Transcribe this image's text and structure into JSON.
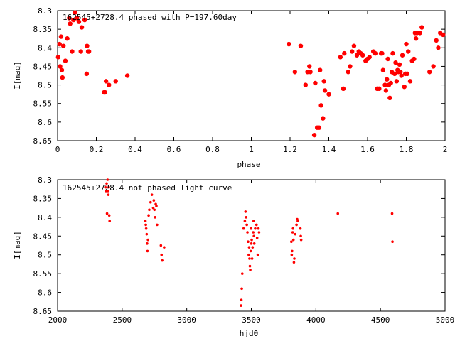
{
  "chart_data": [
    {
      "type": "scatter",
      "title": "162545+2728.4 phased with P=197.60day",
      "xlabel": "phase",
      "ylabel": "I[mag]",
      "xlim": [
        0,
        2
      ],
      "ylim": [
        8.65,
        8.3
      ],
      "y_inverted": true,
      "xticks": [
        "0",
        "0.2",
        "0.4",
        "0.6",
        "0.8",
        "1",
        "1.2",
        "1.4",
        "1.6",
        "1.8",
        "2"
      ],
      "yticks": [
        "8.3",
        "8.35",
        "8.4",
        "8.45",
        "8.5",
        "8.55",
        "8.6",
        "8.65"
      ],
      "grid": false,
      "marker": "filled-circle",
      "color": "#ff0000",
      "points": [
        [
          0.003,
          8.425
        ],
        [
          0.01,
          8.39
        ],
        [
          0.013,
          8.45
        ],
        [
          0.018,
          8.37
        ],
        [
          0.022,
          8.46
        ],
        [
          0.025,
          8.48
        ],
        [
          0.03,
          8.395
        ],
        [
          0.04,
          8.435
        ],
        [
          0.05,
          8.375
        ],
        [
          0.06,
          8.32
        ],
        [
          0.065,
          8.335
        ],
        [
          0.075,
          8.41
        ],
        [
          0.082,
          8.325
        ],
        [
          0.09,
          8.305
        ],
        [
          0.1,
          8.32
        ],
        [
          0.11,
          8.33
        ],
        [
          0.12,
          8.41
        ],
        [
          0.125,
          8.345
        ],
        [
          0.14,
          8.325
        ],
        [
          0.15,
          8.47
        ],
        [
          0.152,
          8.395
        ],
        [
          0.158,
          8.41
        ],
        [
          0.162,
          8.41
        ],
        [
          0.24,
          8.52
        ],
        [
          0.245,
          8.52
        ],
        [
          0.25,
          8.49
        ],
        [
          0.265,
          8.5
        ],
        [
          0.3,
          8.49
        ],
        [
          0.36,
          8.475
        ],
        [
          1.194,
          8.39
        ],
        [
          1.225,
          8.465
        ],
        [
          1.255,
          8.395
        ],
        [
          1.28,
          8.5
        ],
        [
          1.29,
          8.465
        ],
        [
          1.3,
          8.45
        ],
        [
          1.305,
          8.465
        ],
        [
          1.325,
          8.635
        ],
        [
          1.33,
          8.495
        ],
        [
          1.34,
          8.615
        ],
        [
          1.35,
          8.615
        ],
        [
          1.355,
          8.46
        ],
        [
          1.36,
          8.555
        ],
        [
          1.37,
          8.59
        ],
        [
          1.375,
          8.49
        ],
        [
          1.38,
          8.515
        ],
        [
          1.4,
          8.525
        ],
        [
          1.46,
          8.425
        ],
        [
          1.475,
          8.51
        ],
        [
          1.48,
          8.415
        ],
        [
          1.5,
          8.465
        ],
        [
          1.51,
          8.45
        ],
        [
          1.52,
          8.41
        ],
        [
          1.53,
          8.395
        ],
        [
          1.545,
          8.42
        ],
        [
          1.555,
          8.41
        ],
        [
          1.565,
          8.415
        ],
        [
          1.575,
          8.42
        ],
        [
          1.59,
          8.435
        ],
        [
          1.6,
          8.43
        ],
        [
          1.61,
          8.425
        ],
        [
          1.63,
          8.41
        ],
        [
          1.64,
          8.415
        ],
        [
          1.65,
          8.51
        ],
        [
          1.66,
          8.51
        ],
        [
          1.67,
          8.415
        ],
        [
          1.675,
          8.415
        ],
        [
          1.68,
          8.46
        ],
        [
          1.69,
          8.5
        ],
        [
          1.695,
          8.515
        ],
        [
          1.7,
          8.485
        ],
        [
          1.705,
          8.43
        ],
        [
          1.71,
          8.5
        ],
        [
          1.715,
          8.535
        ],
        [
          1.72,
          8.495
        ],
        [
          1.725,
          8.465
        ],
        [
          1.73,
          8.415
        ],
        [
          1.74,
          8.47
        ],
        [
          1.745,
          8.44
        ],
        [
          1.75,
          8.49
        ],
        [
          1.755,
          8.46
        ],
        [
          1.76,
          8.465
        ],
        [
          1.765,
          8.445
        ],
        [
          1.77,
          8.465
        ],
        [
          1.775,
          8.475
        ],
        [
          1.78,
          8.42
        ],
        [
          1.79,
          8.505
        ],
        [
          1.795,
          8.47
        ],
        [
          1.8,
          8.39
        ],
        [
          1.805,
          8.47
        ],
        [
          1.81,
          8.41
        ],
        [
          1.82,
          8.49
        ],
        [
          1.83,
          8.435
        ],
        [
          1.84,
          8.43
        ],
        [
          1.845,
          8.36
        ],
        [
          1.85,
          8.375
        ],
        [
          1.855,
          8.36
        ],
        [
          1.87,
          8.36
        ],
        [
          1.88,
          8.345
        ],
        [
          1.92,
          8.465
        ],
        [
          1.94,
          8.45
        ],
        [
          1.955,
          8.38
        ],
        [
          1.965,
          8.4
        ],
        [
          1.975,
          8.36
        ],
        [
          1.99,
          8.365
        ]
      ]
    },
    {
      "type": "scatter",
      "title": "162545+2728.4 not phased light curve",
      "xlabel": "hjd0",
      "ylabel": "I[mag]",
      "xlim": [
        2000,
        5000
      ],
      "ylim": [
        8.65,
        8.3
      ],
      "y_inverted": true,
      "xticks": [
        "2000",
        "2500",
        "3000",
        "3500",
        "4000",
        "4500",
        "5000"
      ],
      "yticks": [
        "8.3",
        "8.35",
        "8.4",
        "8.45",
        "8.5",
        "8.55",
        "8.6",
        "8.65"
      ],
      "grid": false,
      "marker": "small-dot",
      "color": "#ff0000",
      "points": [
        [
          2370,
          8.32
        ],
        [
          2375,
          8.33
        ],
        [
          2380,
          8.31
        ],
        [
          2383,
          8.39
        ],
        [
          2387,
          8.3
        ],
        [
          2390,
          8.33
        ],
        [
          2393,
          8.34
        ],
        [
          2396,
          8.32
        ],
        [
          2400,
          8.395
        ],
        [
          2403,
          8.41
        ],
        [
          2680,
          8.41
        ],
        [
          2683,
          8.42
        ],
        [
          2686,
          8.43
        ],
        [
          2690,
          8.445
        ],
        [
          2693,
          8.47
        ],
        [
          2696,
          8.49
        ],
        [
          2700,
          8.46
        ],
        [
          2705,
          8.395
        ],
        [
          2710,
          8.38
        ],
        [
          2720,
          8.36
        ],
        [
          2730,
          8.34
        ],
        [
          2740,
          8.375
        ],
        [
          2745,
          8.355
        ],
        [
          2750,
          8.38
        ],
        [
          2755,
          8.4
        ],
        [
          2760,
          8.365
        ],
        [
          2765,
          8.37
        ],
        [
          2770,
          8.42
        ],
        [
          2800,
          8.475
        ],
        [
          2805,
          8.5
        ],
        [
          2810,
          8.515
        ],
        [
          2825,
          8.48
        ],
        [
          3420,
          8.635
        ],
        [
          3423,
          8.62
        ],
        [
          3426,
          8.59
        ],
        [
          3430,
          8.55
        ],
        [
          3440,
          8.43
        ],
        [
          3450,
          8.41
        ],
        [
          3455,
          8.385
        ],
        [
          3460,
          8.4
        ],
        [
          3465,
          8.42
        ],
        [
          3470,
          8.44
        ],
        [
          3475,
          8.465
        ],
        [
          3480,
          8.5
        ],
        [
          3483,
          8.48
        ],
        [
          3486,
          8.51
        ],
        [
          3489,
          8.53
        ],
        [
          3492,
          8.54
        ],
        [
          3495,
          8.49
        ],
        [
          3498,
          8.43
        ],
        [
          3500,
          8.47
        ],
        [
          3503,
          8.46
        ],
        [
          3506,
          8.51
        ],
        [
          3510,
          8.48
        ],
        [
          3515,
          8.44
        ],
        [
          3518,
          8.41
        ],
        [
          3520,
          8.45
        ],
        [
          3523,
          8.47
        ],
        [
          3530,
          8.43
        ],
        [
          3540,
          8.42
        ],
        [
          3545,
          8.455
        ],
        [
          3550,
          8.5
        ],
        [
          3555,
          8.43
        ],
        [
          3560,
          8.44
        ],
        [
          3810,
          8.465
        ],
        [
          3813,
          8.5
        ],
        [
          3816,
          8.49
        ],
        [
          3820,
          8.44
        ],
        [
          3823,
          8.43
        ],
        [
          3826,
          8.46
        ],
        [
          3830,
          8.52
        ],
        [
          3833,
          8.51
        ],
        [
          3840,
          8.445
        ],
        [
          3850,
          8.42
        ],
        [
          3855,
          8.405
        ],
        [
          3860,
          8.41
        ],
        [
          3880,
          8.43
        ],
        [
          3883,
          8.45
        ],
        [
          3886,
          8.46
        ],
        [
          4170,
          8.39
        ],
        [
          4590,
          8.39
        ],
        [
          4593,
          8.465
        ]
      ]
    }
  ]
}
